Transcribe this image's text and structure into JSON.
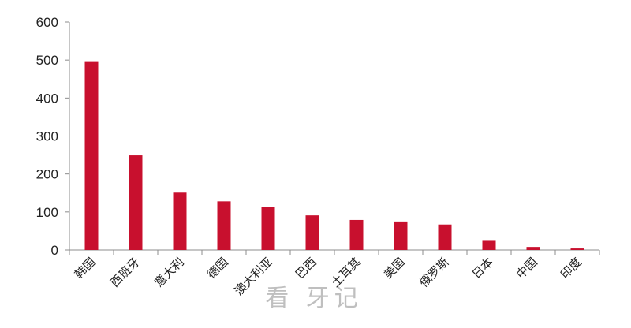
{
  "chart_data": {
    "type": "bar",
    "title": "",
    "xlabel": "",
    "ylabel": "",
    "categories": [
      "韩国",
      "西班牙",
      "意大利",
      "德国",
      "澳大利亚",
      "巴西",
      "土耳其",
      "美国",
      "俄罗斯",
      "日本",
      "中国",
      "印度"
    ],
    "values": [
      497,
      249,
      151,
      128,
      113,
      91,
      79,
      75,
      67,
      24,
      8,
      4
    ],
    "ylim": [
      0,
      600
    ],
    "yticks": [
      0,
      100,
      200,
      300,
      400,
      500,
      600
    ],
    "grid": false,
    "legend": "none",
    "bar_color": "#c8102e"
  },
  "watermark": "看 牙记"
}
